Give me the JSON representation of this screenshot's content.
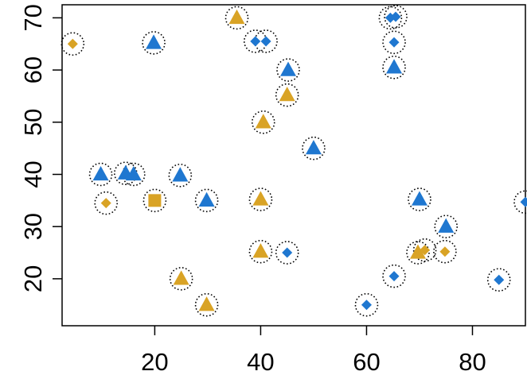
{
  "chart_data": {
    "type": "scatter",
    "title": "",
    "xlabel": "",
    "ylabel": "",
    "xlim": [
      2.5,
      90
    ],
    "ylim": [
      11,
      72.5
    ],
    "x_ticks": [
      20,
      40,
      60,
      80
    ],
    "y_ticks": [
      20,
      30,
      40,
      50,
      60,
      70
    ],
    "grid": false,
    "legend": "none",
    "colors": {
      "blue": "#1F77D0",
      "gold": "#D9A325"
    },
    "points": [
      {
        "x": 4.5,
        "y": 65,
        "shape": "diamond",
        "color": "gold"
      },
      {
        "x": 19.8,
        "y": 65.2,
        "shape": "triangle",
        "color": "blue"
      },
      {
        "x": 35.5,
        "y": 70,
        "shape": "triangle",
        "color": "gold"
      },
      {
        "x": 39,
        "y": 65.5,
        "shape": "diamond",
        "color": "blue"
      },
      {
        "x": 41,
        "y": 65.5,
        "shape": "diamond",
        "color": "blue"
      },
      {
        "x": 45.2,
        "y": 60,
        "shape": "triangle",
        "color": "blue"
      },
      {
        "x": 45,
        "y": 55.2,
        "shape": "triangle",
        "color": "gold"
      },
      {
        "x": 40.5,
        "y": 50,
        "shape": "triangle",
        "color": "gold"
      },
      {
        "x": 64.5,
        "y": 70,
        "shape": "diamond",
        "color": "blue"
      },
      {
        "x": 65.5,
        "y": 70.2,
        "shape": "diamond",
        "color": "blue"
      },
      {
        "x": 65.2,
        "y": 65.3,
        "shape": "diamond",
        "color": "blue"
      },
      {
        "x": 65.2,
        "y": 60.5,
        "shape": "triangle",
        "color": "blue"
      },
      {
        "x": 50,
        "y": 45,
        "shape": "triangle",
        "color": "blue"
      },
      {
        "x": 9.8,
        "y": 40,
        "shape": "triangle",
        "color": "blue"
      },
      {
        "x": 14.5,
        "y": 40.2,
        "shape": "triangle",
        "color": "blue"
      },
      {
        "x": 16,
        "y": 40,
        "shape": "triangle",
        "color": "blue"
      },
      {
        "x": 24.8,
        "y": 39.8,
        "shape": "triangle",
        "color": "blue"
      },
      {
        "x": 10.8,
        "y": 34.5,
        "shape": "diamond",
        "color": "gold"
      },
      {
        "x": 20,
        "y": 35,
        "shape": "square",
        "color": "gold"
      },
      {
        "x": 29.8,
        "y": 35,
        "shape": "triangle",
        "color": "blue"
      },
      {
        "x": 40,
        "y": 35.2,
        "shape": "triangle",
        "color": "gold"
      },
      {
        "x": 70,
        "y": 35.2,
        "shape": "triangle",
        "color": "blue"
      },
      {
        "x": 75,
        "y": 30,
        "shape": "triangle",
        "color": "blue"
      },
      {
        "x": 90,
        "y": 34.7,
        "shape": "diamond",
        "color": "blue"
      },
      {
        "x": 40,
        "y": 25.2,
        "shape": "triangle",
        "color": "gold"
      },
      {
        "x": 45,
        "y": 25,
        "shape": "diamond",
        "color": "blue"
      },
      {
        "x": 69.7,
        "y": 25,
        "shape": "triangle",
        "color": "gold"
      },
      {
        "x": 71,
        "y": 25.5,
        "shape": "diamond",
        "color": "gold"
      },
      {
        "x": 74.8,
        "y": 25.2,
        "shape": "diamond",
        "color": "gold"
      },
      {
        "x": 25,
        "y": 20,
        "shape": "triangle",
        "color": "gold"
      },
      {
        "x": 65.2,
        "y": 20.5,
        "shape": "diamond",
        "color": "blue"
      },
      {
        "x": 85,
        "y": 19.8,
        "shape": "diamond",
        "color": "blue"
      },
      {
        "x": 29.8,
        "y": 15,
        "shape": "triangle",
        "color": "gold"
      },
      {
        "x": 60,
        "y": 15,
        "shape": "diamond",
        "color": "blue"
      }
    ]
  }
}
